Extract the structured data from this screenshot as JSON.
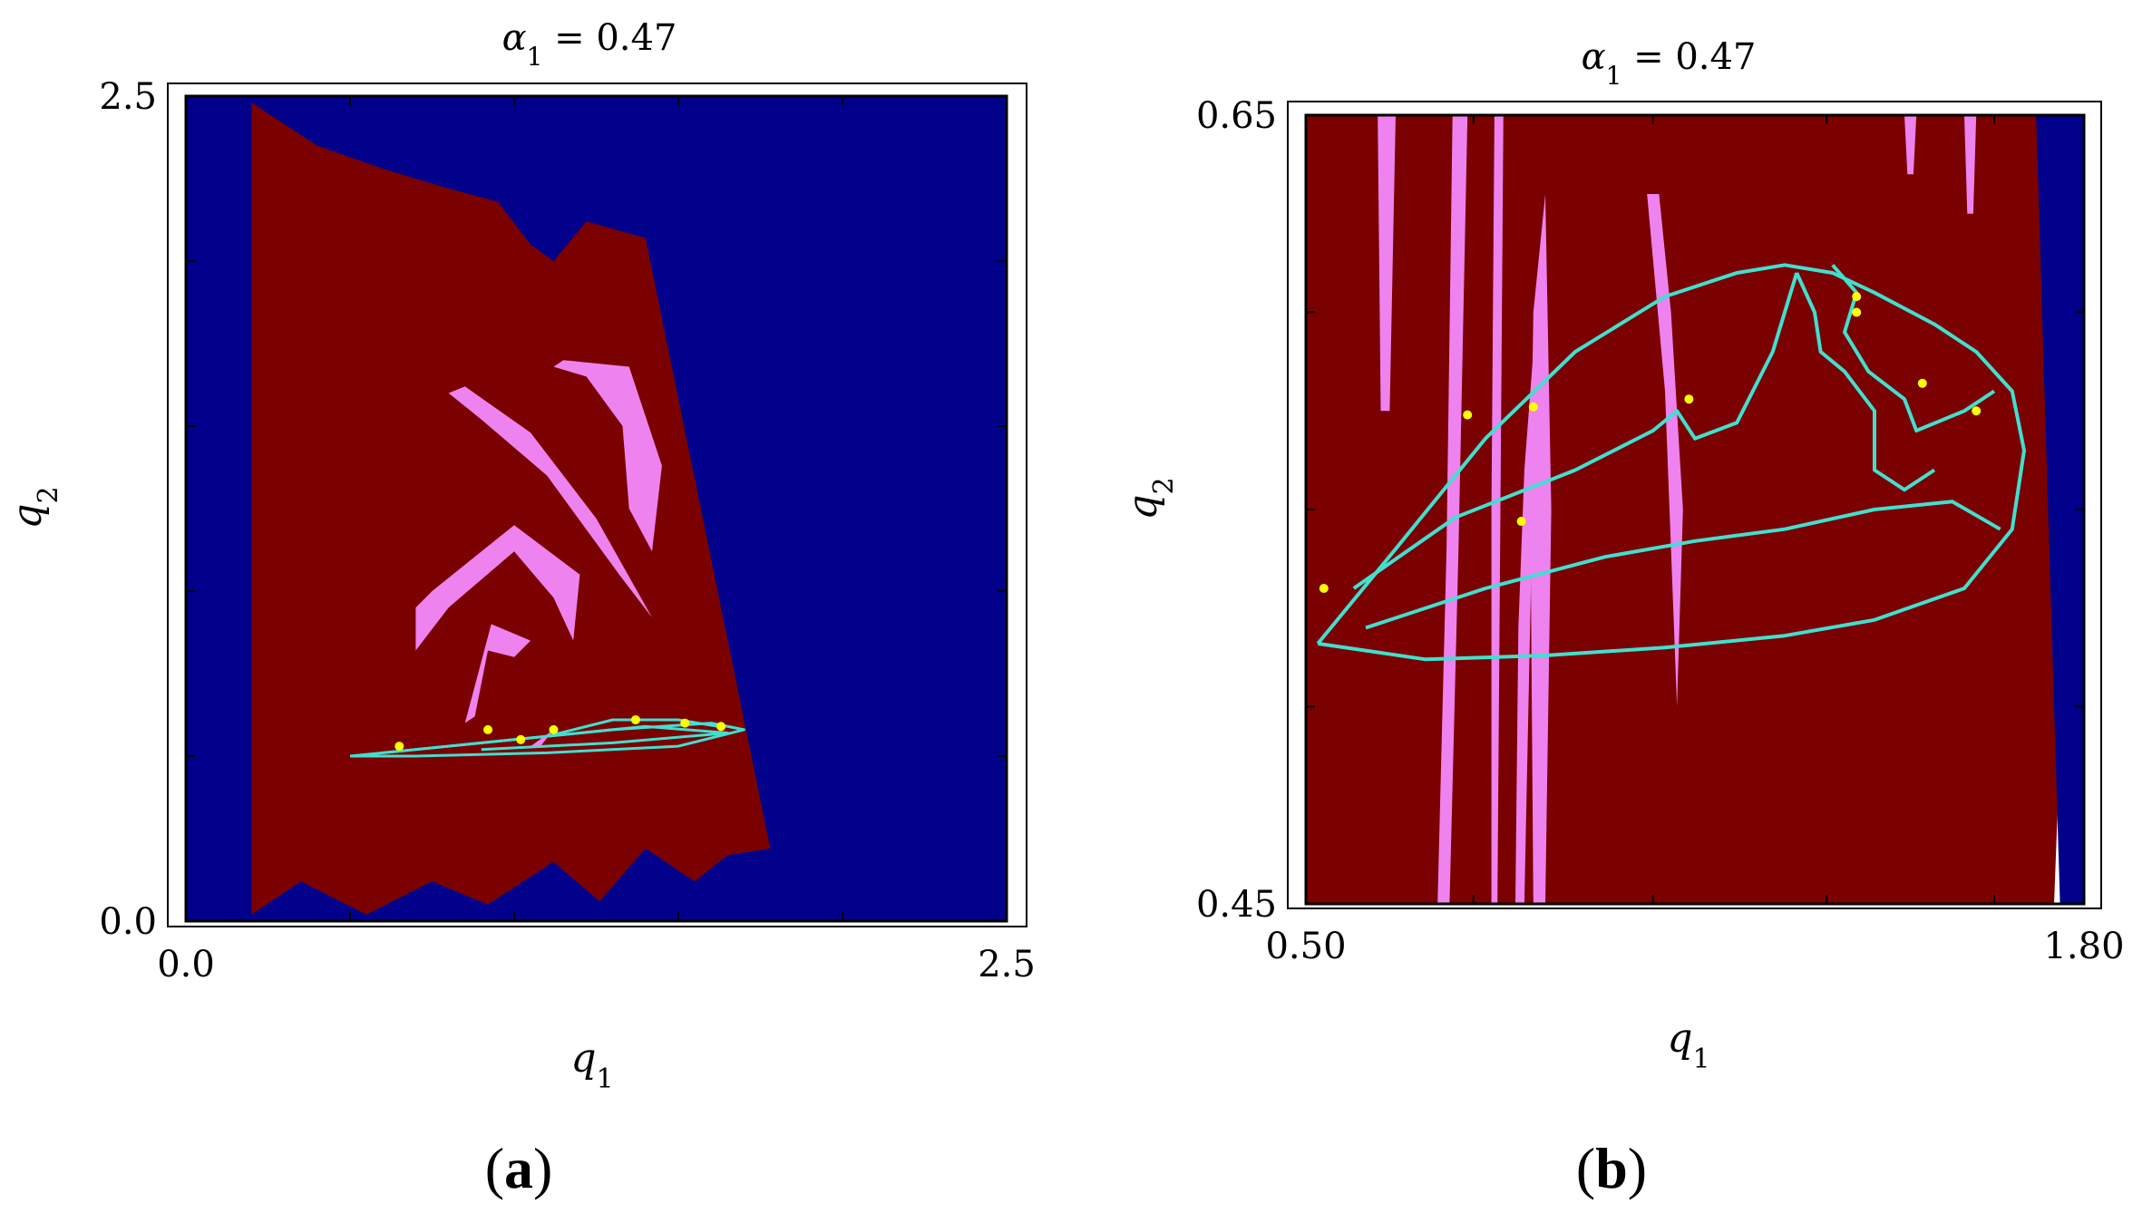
{
  "colors": {
    "escape_region": "#00008b",
    "bounded_region": "#7b0000",
    "secondary_region": "#ee82ee",
    "attractor": "#40e0d0",
    "periodic_points": "#ffff00",
    "frame": "#000000"
  },
  "chart_data": [
    {
      "type": "heatmap",
      "panel_label": "a",
      "title_symbol": "α",
      "title_subscript": "1",
      "title_value": " = 0.47",
      "xlabel_symbol": "q",
      "xlabel_subscript": "1",
      "ylabel_symbol": "q",
      "ylabel_subscript": "2",
      "xlim": [
        0.0,
        2.5
      ],
      "ylim": [
        0.0,
        2.5
      ],
      "x_ticks": [
        0.0,
        0.5,
        1.0,
        1.5,
        2.0,
        2.5
      ],
      "y_ticks": [
        0.0,
        0.5,
        1.0,
        1.5,
        2.0,
        2.5
      ],
      "x_tick_labels": [
        "0.0",
        "2.5"
      ],
      "y_tick_labels": [
        "0.0",
        "2.5"
      ],
      "regions": [
        {
          "color_key": "escape_region",
          "points": [
            [
              0.0,
              0.0
            ],
            [
              2.5,
              0.0
            ],
            [
              2.5,
              2.5
            ],
            [
              0.0,
              2.5
            ]
          ]
        },
        {
          "color_key": "bounded_region",
          "points": [
            [
              0.2,
              0.02
            ],
            [
              0.35,
              0.12
            ],
            [
              0.55,
              0.02
            ],
            [
              0.75,
              0.12
            ],
            [
              0.92,
              0.05
            ],
            [
              1.12,
              0.18
            ],
            [
              1.26,
              0.06
            ],
            [
              1.4,
              0.22
            ],
            [
              1.55,
              0.12
            ],
            [
              1.65,
              0.2
            ],
            [
              1.78,
              0.22
            ],
            [
              1.4,
              2.07
            ],
            [
              1.22,
              2.12
            ],
            [
              1.12,
              2.0
            ],
            [
              1.05,
              2.05
            ],
            [
              0.95,
              2.18
            ],
            [
              0.8,
              2.22
            ],
            [
              0.6,
              2.28
            ],
            [
              0.4,
              2.35
            ],
            [
              0.2,
              2.48
            ]
          ]
        },
        {
          "color_key": "secondary_region",
          "points": [
            [
              0.85,
              1.62
            ],
            [
              1.05,
              1.48
            ],
            [
              1.25,
              1.22
            ],
            [
              1.42,
              0.92
            ],
            [
              1.32,
              1.05
            ],
            [
              1.1,
              1.35
            ],
            [
              0.9,
              1.52
            ],
            [
              0.8,
              1.6
            ]
          ]
        },
        {
          "color_key": "secondary_region",
          "points": [
            [
              1.15,
              1.7
            ],
            [
              1.35,
              1.68
            ],
            [
              1.45,
              1.38
            ],
            [
              1.42,
              1.12
            ],
            [
              1.35,
              1.25
            ],
            [
              1.33,
              1.5
            ],
            [
              1.22,
              1.65
            ],
            [
              1.12,
              1.68
            ]
          ]
        },
        {
          "color_key": "secondary_region",
          "points": [
            [
              0.75,
              1.0
            ],
            [
              1.0,
              1.2
            ],
            [
              1.2,
              1.05
            ],
            [
              1.18,
              0.85
            ],
            [
              1.12,
              0.98
            ],
            [
              1.0,
              1.12
            ],
            [
              0.8,
              0.95
            ],
            [
              0.7,
              0.82
            ],
            [
              0.7,
              0.95
            ]
          ]
        },
        {
          "color_key": "secondary_region",
          "points": [
            [
              0.85,
              0.6
            ],
            [
              0.93,
              0.9
            ],
            [
              1.05,
              0.85
            ],
            [
              1.0,
              0.8
            ],
            [
              0.92,
              0.82
            ],
            [
              0.88,
              0.62
            ]
          ]
        },
        {
          "color_key": "secondary_region",
          "points": [
            [
              1.05,
              0.53
            ],
            [
              1.12,
              0.58
            ],
            [
              1.08,
              0.53
            ]
          ]
        }
      ],
      "attractor_lines": [
        {
          "points": [
            [
              0.5,
              0.5
            ],
            [
              0.9,
              0.54
            ],
            [
              1.3,
              0.58
            ],
            [
              1.6,
              0.6
            ],
            [
              1.7,
              0.58
            ],
            [
              1.5,
              0.53
            ],
            [
              1.1,
              0.51
            ],
            [
              0.7,
              0.5
            ],
            [
              0.5,
              0.5
            ]
          ]
        },
        {
          "points": [
            [
              0.6,
              0.51
            ],
            [
              1.0,
              0.55
            ],
            [
              1.4,
              0.59
            ],
            [
              1.65,
              0.57
            ],
            [
              1.3,
              0.54
            ],
            [
              0.9,
              0.52
            ]
          ]
        },
        {
          "points": [
            [
              1.1,
              0.56
            ],
            [
              1.3,
              0.61
            ],
            [
              1.5,
              0.61
            ],
            [
              1.62,
              0.59
            ]
          ]
        }
      ],
      "periodic_points": [
        [
          0.65,
          0.53
        ],
        [
          0.92,
          0.58
        ],
        [
          1.02,
          0.55
        ],
        [
          1.12,
          0.58
        ],
        [
          1.37,
          0.61
        ],
        [
          1.52,
          0.6
        ],
        [
          1.63,
          0.59
        ]
      ]
    },
    {
      "type": "heatmap",
      "panel_label": "b",
      "title_symbol": "α",
      "title_subscript": "1",
      "title_value": " = 0.47",
      "xlabel_symbol": "q",
      "xlabel_subscript": "1",
      "ylabel_symbol": "q",
      "ylabel_subscript": "2",
      "xlim": [
        0.5,
        1.8
      ],
      "ylim": [
        0.45,
        0.65
      ],
      "x_ticks": [
        0.5,
        0.78,
        1.08,
        1.37,
        1.65
      ],
      "y_ticks": [
        0.45,
        0.5,
        0.55,
        0.6,
        0.65
      ],
      "x_tick_labels": [
        "0.50",
        "1.80"
      ],
      "y_tick_labels": [
        "0.45",
        "0.65"
      ],
      "regions": [
        {
          "color_key": "bounded_region",
          "points": [
            [
              0.5,
              0.45
            ],
            [
              1.75,
              0.45
            ],
            [
              1.8,
              0.65
            ],
            [
              0.5,
              0.65
            ]
          ]
        },
        {
          "color_key": "escape_region",
          "points": [
            [
              1.72,
              0.65
            ],
            [
              1.8,
              0.65
            ],
            [
              1.8,
              0.45
            ],
            [
              1.76,
              0.45
            ]
          ]
        },
        {
          "color_key": "secondary_region",
          "points": [
            [
              0.62,
              0.65
            ],
            [
              0.65,
              0.65
            ],
            [
              0.64,
              0.575
            ],
            [
              0.625,
              0.575
            ]
          ]
        },
        {
          "color_key": "secondary_region",
          "points": [
            [
              0.72,
              0.45
            ],
            [
              0.74,
              0.45
            ],
            [
              0.755,
              0.54
            ],
            [
              0.77,
              0.65
            ],
            [
              0.745,
              0.65
            ],
            [
              0.735,
              0.54
            ]
          ]
        },
        {
          "color_key": "secondary_region",
          "points": [
            [
              0.81,
              0.45
            ],
            [
              0.82,
              0.45
            ],
            [
              0.825,
              0.55
            ],
            [
              0.83,
              0.65
            ],
            [
              0.815,
              0.65
            ],
            [
              0.81,
              0.55
            ]
          ]
        },
        {
          "color_key": "secondary_region",
          "points": [
            [
              0.85,
              0.45
            ],
            [
              0.865,
              0.45
            ],
            [
              0.88,
              0.56
            ],
            [
              0.9,
              0.6
            ],
            [
              0.885,
              0.6
            ],
            [
              0.865,
              0.56
            ],
            [
              0.855,
              0.52
            ]
          ]
        },
        {
          "color_key": "secondary_region",
          "points": [
            [
              0.88,
              0.45
            ],
            [
              0.9,
              0.45
            ],
            [
              0.91,
              0.55
            ],
            [
              0.9,
              0.63
            ],
            [
              0.88,
              0.6
            ],
            [
              0.875,
              0.55
            ]
          ]
        },
        {
          "color_key": "secondary_region",
          "points": [
            [
              1.07,
              0.63
            ],
            [
              1.1,
              0.58
            ],
            [
              1.12,
              0.5
            ],
            [
              1.13,
              0.55
            ],
            [
              1.11,
              0.6
            ],
            [
              1.09,
              0.63
            ]
          ]
        },
        {
          "color_key": "secondary_region",
          "points": [
            [
              1.5,
              0.65
            ],
            [
              1.52,
              0.65
            ],
            [
              1.515,
              0.635
            ],
            [
              1.505,
              0.635
            ]
          ]
        },
        {
          "color_key": "secondary_region",
          "points": [
            [
              1.6,
              0.65
            ],
            [
              1.62,
              0.65
            ],
            [
              1.615,
              0.625
            ],
            [
              1.605,
              0.625
            ]
          ]
        }
      ],
      "attractor_lines": [
        {
          "points": [
            [
              0.52,
              0.516
            ],
            [
              0.65,
              0.54
            ],
            [
              0.8,
              0.568
            ],
            [
              0.95,
              0.59
            ],
            [
              1.1,
              0.604
            ],
            [
              1.22,
              0.61
            ],
            [
              1.3,
              0.612
            ],
            [
              1.38,
              0.61
            ],
            [
              1.45,
              0.605
            ],
            [
              1.55,
              0.597
            ],
            [
              1.62,
              0.59
            ],
            [
              1.68,
              0.58
            ],
            [
              1.7,
              0.565
            ],
            [
              1.68,
              0.545
            ],
            [
              1.6,
              0.53
            ],
            [
              1.45,
              0.522
            ],
            [
              1.3,
              0.518
            ],
            [
              1.1,
              0.515
            ],
            [
              0.9,
              0.513
            ],
            [
              0.7,
              0.512
            ],
            [
              0.52,
              0.516
            ]
          ]
        },
        {
          "points": [
            [
              0.58,
              0.53
            ],
            [
              0.75,
              0.548
            ],
            [
              0.95,
              0.56
            ],
            [
              1.08,
              0.57
            ],
            [
              1.12,
              0.575
            ],
            [
              1.15,
              0.568
            ],
            [
              1.22,
              0.572
            ],
            [
              1.28,
              0.59
            ],
            [
              1.3,
              0.6
            ],
            [
              1.32,
              0.61
            ]
          ]
        },
        {
          "points": [
            [
              0.6,
              0.52
            ],
            [
              0.8,
              0.53
            ],
            [
              1.0,
              0.538
            ],
            [
              1.15,
              0.542
            ],
            [
              1.3,
              0.545
            ],
            [
              1.45,
              0.55
            ],
            [
              1.58,
              0.552
            ],
            [
              1.66,
              0.545
            ]
          ]
        },
        {
          "points": [
            [
              1.38,
              0.612
            ],
            [
              1.42,
              0.605
            ],
            [
              1.4,
              0.595
            ],
            [
              1.44,
              0.585
            ],
            [
              1.5,
              0.578
            ],
            [
              1.52,
              0.57
            ],
            [
              1.6,
              0.575
            ],
            [
              1.65,
              0.58
            ]
          ]
        },
        {
          "points": [
            [
              1.32,
              0.61
            ],
            [
              1.35,
              0.6
            ],
            [
              1.36,
              0.59
            ],
            [
              1.4,
              0.585
            ],
            [
              1.45,
              0.575
            ],
            [
              1.45,
              0.56
            ],
            [
              1.5,
              0.555
            ],
            [
              1.55,
              0.56
            ]
          ]
        }
      ],
      "periodic_points": [
        [
          0.53,
          0.53
        ],
        [
          0.77,
          0.574
        ],
        [
          0.86,
          0.547
        ],
        [
          0.88,
          0.576
        ],
        [
          1.14,
          0.578
        ],
        [
          1.42,
          0.6
        ],
        [
          1.42,
          0.604
        ],
        [
          1.53,
          0.582
        ],
        [
          1.62,
          0.575
        ]
      ]
    }
  ]
}
